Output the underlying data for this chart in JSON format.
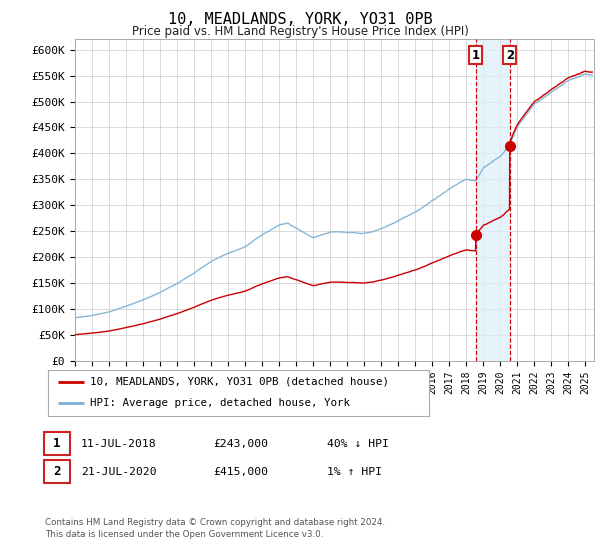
{
  "title": "10, MEADLANDS, YORK, YO31 0PB",
  "subtitle": "Price paid vs. HM Land Registry's House Price Index (HPI)",
  "ylim": [
    0,
    620000
  ],
  "yticks": [
    0,
    50000,
    100000,
    150000,
    200000,
    250000,
    300000,
    350000,
    400000,
    450000,
    500000,
    550000,
    600000
  ],
  "ytick_labels": [
    "£0",
    "£50K",
    "£100K",
    "£150K",
    "£200K",
    "£250K",
    "£300K",
    "£350K",
    "£400K",
    "£450K",
    "£500K",
    "£550K",
    "£600K"
  ],
  "xlim_start": 1995.0,
  "xlim_end": 2025.5,
  "hpi_color": "#7ab0d4",
  "price_color": "#cc0000",
  "sale1_date_num": 2018.54,
  "sale1_price": 243000,
  "sale2_date_num": 2020.55,
  "sale2_price": 415000,
  "span_color": "#ddeef8",
  "legend_line1": "10, MEADLANDS, YORK, YO31 0PB (detached house)",
  "legend_line2": "HPI: Average price, detached house, York",
  "table_row1": [
    "1",
    "11-JUL-2018",
    "£243,000",
    "40% ↓ HPI"
  ],
  "table_row2": [
    "2",
    "21-JUL-2020",
    "£415,000",
    "1% ↑ HPI"
  ],
  "footnote": "Contains HM Land Registry data © Crown copyright and database right 2024.\nThis data is licensed under the Open Government Licence v3.0.",
  "background_color": "#ffffff",
  "grid_color": "#cccccc"
}
